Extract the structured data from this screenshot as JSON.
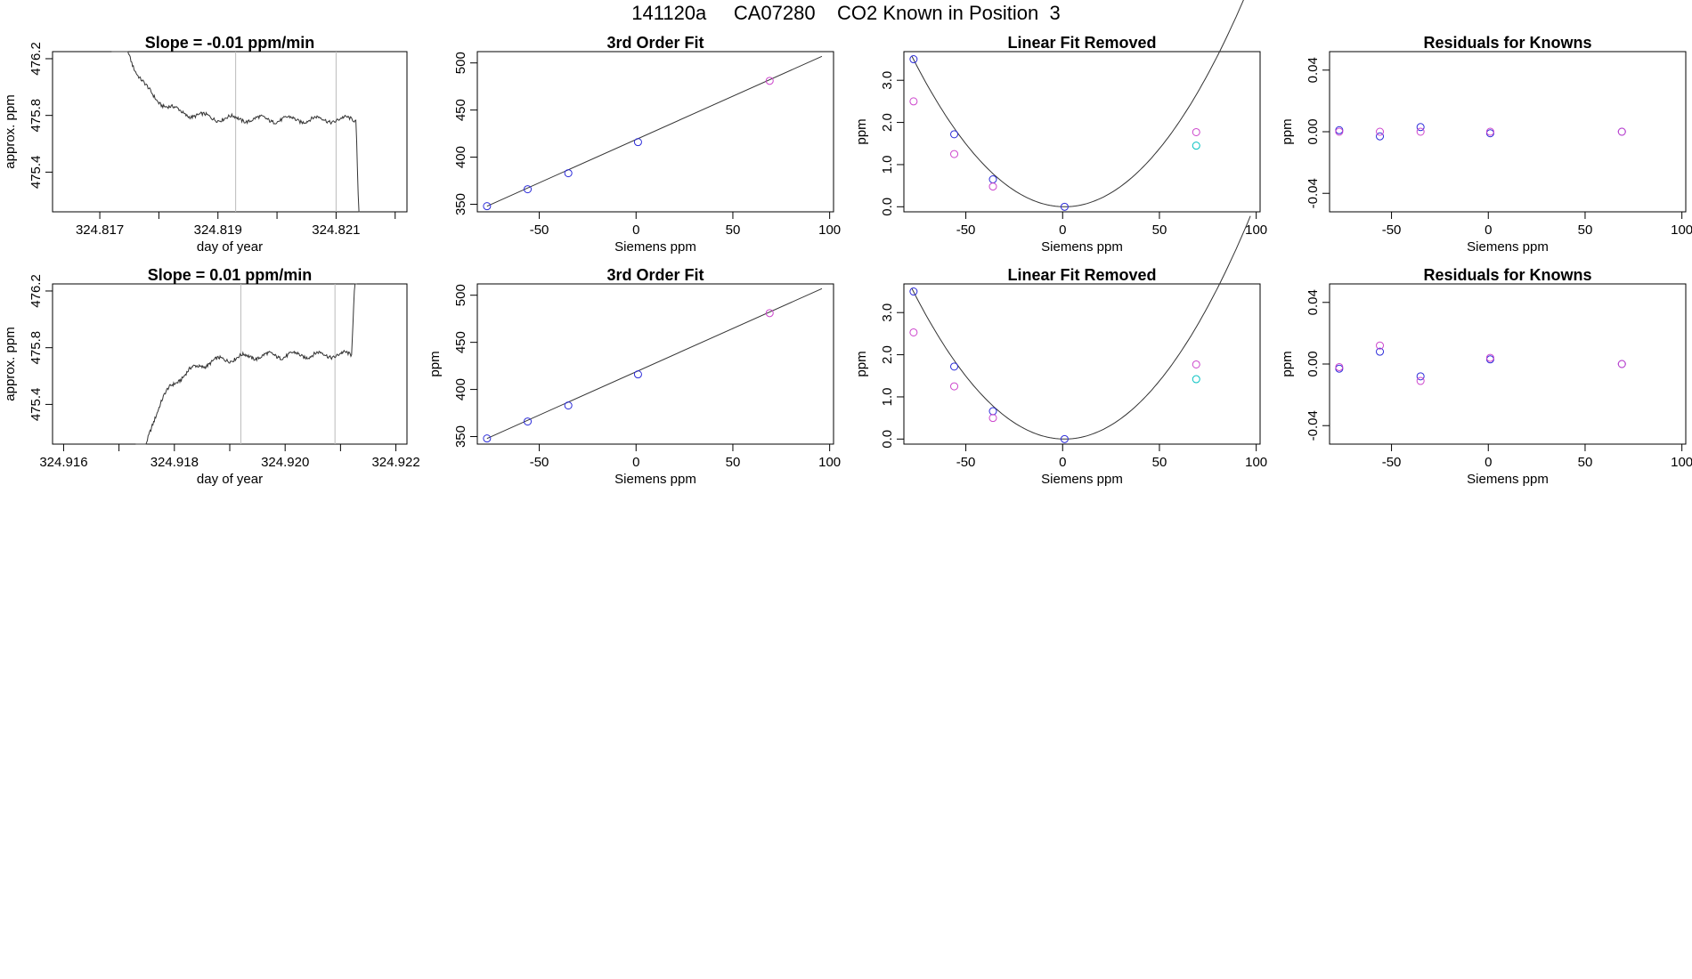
{
  "figure_title": "141120a     CA07280    CO2 Known in Position  3",
  "colors": {
    "frame": "#000000",
    "line": "#333333",
    "vline": "#bbbbbb",
    "blue": "#2b2bd9",
    "magenta": "#cc44cc",
    "cyan": "#00c0c0",
    "purple": "#7a3de0"
  },
  "chart_data": [
    {
      "type": "line",
      "title": "Slope =  -0.01  ppm/min",
      "xlabel": "day of year",
      "ylabel": "approx. ppm",
      "xlim": [
        324.8162,
        324.8222
      ],
      "ylim": [
        475.12,
        476.25
      ],
      "xticks": [
        324.817,
        324.818,
        324.819,
        324.82,
        324.821,
        324.822
      ],
      "xtick_labels": [
        "324.817",
        "",
        "324.819",
        "",
        "324.821",
        ""
      ],
      "yticks": [
        475.4,
        475.8,
        476.2
      ],
      "ytick_labels": [
        "475.4",
        "475.8",
        "476.2"
      ],
      "vlines": [
        324.8193,
        324.821
      ],
      "shape": "descending",
      "plateau": 475.77,
      "xstart": 324.8172,
      "xend": 324.8214
    },
    {
      "type": "scatter",
      "title": "3rd Order Fit",
      "xlabel": "Siemens ppm",
      "ylabel": "",
      "xlim": [
        -82,
        102
      ],
      "ylim": [
        342,
        512
      ],
      "xticks": [
        -50,
        0,
        50,
        100
      ],
      "xtick_labels": [
        "-50",
        "0",
        "50",
        "100"
      ],
      "yticks": [
        350,
        400,
        450,
        500
      ],
      "ytick_labels": [
        "350",
        "400",
        "450",
        "500"
      ],
      "curve": {
        "kind": "linear",
        "x": [
          -77,
          96
        ],
        "y": [
          348,
          507
        ]
      },
      "series": [
        {
          "color": "blue",
          "x": [
            -77,
            -56,
            -35,
            1
          ],
          "y": [
            348,
            366,
            383,
            416
          ]
        },
        {
          "color": "magenta",
          "x": [
            69
          ],
          "y": [
            481
          ]
        }
      ]
    },
    {
      "type": "scatter",
      "title": "Linear Fit Removed",
      "xlabel": "Siemens ppm",
      "ylabel": "ppm",
      "xlim": [
        -82,
        102
      ],
      "ylim": [
        -0.12,
        3.68
      ],
      "xticks": [
        -50,
        0,
        50,
        100
      ],
      "xtick_labels": [
        "-50",
        "0",
        "50",
        "100"
      ],
      "yticks": [
        0.0,
        1.0,
        2.0,
        3.0
      ],
      "ytick_labels": [
        "0.0",
        "1.0",
        "2.0",
        "3.0"
      ],
      "curve": {
        "kind": "quadratic",
        "vertex": [
          1,
          0
        ],
        "a": 0.000574,
        "x": [
          -78,
          97
        ]
      },
      "series": [
        {
          "color": "blue",
          "x": [
            -77,
            -56,
            -36,
            1
          ],
          "y": [
            3.5,
            1.72,
            0.65,
            0.0
          ]
        },
        {
          "color": "magenta",
          "x": [
            -77,
            -56,
            -36,
            69
          ],
          "y": [
            2.5,
            1.25,
            0.48,
            1.77
          ]
        },
        {
          "color": "cyan",
          "x": [
            69
          ],
          "y": [
            1.45
          ]
        }
      ]
    },
    {
      "type": "scatter",
      "title": "Residuals for Knowns",
      "xlabel": "Siemens ppm",
      "ylabel": "ppm",
      "xlim": [
        -82,
        102
      ],
      "ylim": [
        -0.052,
        0.052
      ],
      "xticks": [
        -50,
        0,
        50,
        100
      ],
      "xtick_labels": [
        "-50",
        "0",
        "50",
        "100"
      ],
      "yticks": [
        -0.04,
        0.0,
        0.04
      ],
      "ytick_labels": [
        "-0.04",
        "0.00",
        "0.04"
      ],
      "series": [
        {
          "color": "blue",
          "x": [
            -77,
            -56,
            -35,
            1,
            69
          ],
          "y": [
            0.001,
            -0.003,
            0.003,
            -0.001,
            0.0
          ]
        },
        {
          "color": "magenta",
          "x": [
            -77,
            -56,
            -35,
            1,
            69
          ],
          "y": [
            0.0,
            0.0,
            0.0,
            0.0,
            0.0
          ]
        }
      ]
    },
    {
      "type": "line",
      "title": "Slope =  0.01  ppm/min",
      "xlabel": "day of year",
      "ylabel": "approx. ppm",
      "xlim": [
        324.9158,
        324.9222
      ],
      "ylim": [
        475.12,
        476.25
      ],
      "xticks": [
        324.916,
        324.917,
        324.918,
        324.919,
        324.92,
        324.921,
        324.922
      ],
      "xtick_labels": [
        "324.916",
        "",
        "324.918",
        "",
        "324.920",
        "",
        "324.922"
      ],
      "yticks": [
        475.4,
        475.8,
        476.2
      ],
      "ytick_labels": [
        "475.4",
        "475.8",
        "476.2"
      ],
      "vlines": [
        324.9192,
        324.9209
      ],
      "shape": "ascending",
      "plateau": 475.75,
      "xstart": 324.9173,
      "xend": 324.9213
    },
    {
      "type": "scatter",
      "title": "3rd Order Fit",
      "xlabel": "Siemens ppm",
      "ylabel": "ppm",
      "xlim": [
        -82,
        102
      ],
      "ylim": [
        342,
        512
      ],
      "xticks": [
        -50,
        0,
        50,
        100
      ],
      "xtick_labels": [
        "-50",
        "0",
        "50",
        "100"
      ],
      "yticks": [
        350,
        400,
        450,
        500
      ],
      "ytick_labels": [
        "350",
        "400",
        "450",
        "500"
      ],
      "curve": {
        "kind": "linear",
        "x": [
          -77,
          96
        ],
        "y": [
          348,
          507
        ]
      },
      "series": [
        {
          "color": "blue",
          "x": [
            -77,
            -56,
            -35,
            1
          ],
          "y": [
            348,
            366,
            383,
            416
          ]
        },
        {
          "color": "magenta",
          "x": [
            69
          ],
          "y": [
            481
          ]
        }
      ]
    },
    {
      "type": "scatter",
      "title": "Linear Fit Removed",
      "xlabel": "Siemens ppm",
      "ylabel": "ppm",
      "xlim": [
        -82,
        102
      ],
      "ylim": [
        -0.12,
        3.68
      ],
      "xticks": [
        -50,
        0,
        50,
        100
      ],
      "xtick_labels": [
        "-50",
        "0",
        "50",
        "100"
      ],
      "yticks": [
        0.0,
        1.0,
        2.0,
        3.0
      ],
      "ytick_labels": [
        "0.0",
        "1.0",
        "2.0",
        "3.0"
      ],
      "curve": {
        "kind": "quadratic",
        "vertex": [
          1,
          0
        ],
        "a": 0.000574,
        "x": [
          -78,
          97
        ]
      },
      "series": [
        {
          "color": "blue",
          "x": [
            -77,
            -56,
            -36,
            1
          ],
          "y": [
            3.5,
            1.72,
            0.66,
            0.0
          ]
        },
        {
          "color": "magenta",
          "x": [
            -77,
            -56,
            -36,
            69
          ],
          "y": [
            2.53,
            1.25,
            0.5,
            1.77
          ]
        },
        {
          "color": "cyan",
          "x": [
            69
          ],
          "y": [
            1.42
          ]
        }
      ]
    },
    {
      "type": "scatter",
      "title": "Residuals for Knowns",
      "xlabel": "Siemens ppm",
      "ylabel": "ppm",
      "xlim": [
        -82,
        102
      ],
      "ylim": [
        -0.052,
        0.052
      ],
      "xticks": [
        -50,
        0,
        50,
        100
      ],
      "xtick_labels": [
        "-50",
        "0",
        "50",
        "100"
      ],
      "yticks": [
        -0.04,
        0.0,
        0.04
      ],
      "ytick_labels": [
        "-0.04",
        "0.00",
        "0.04"
      ],
      "series": [
        {
          "color": "blue",
          "x": [
            -77,
            -56,
            -35,
            1,
            69
          ],
          "y": [
            -0.003,
            0.008,
            -0.008,
            0.003,
            0.0
          ]
        },
        {
          "color": "magenta",
          "x": [
            -77,
            -56,
            -35,
            1,
            69
          ],
          "y": [
            -0.002,
            0.012,
            -0.011,
            0.004,
            0.0
          ]
        }
      ]
    }
  ]
}
